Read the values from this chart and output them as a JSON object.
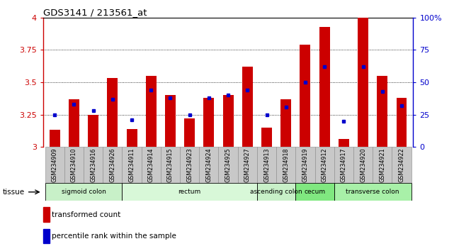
{
  "title": "GDS3141 / 213561_at",
  "samples": [
    "GSM234909",
    "GSM234910",
    "GSM234916",
    "GSM234926",
    "GSM234911",
    "GSM234914",
    "GSM234915",
    "GSM234923",
    "GSM234924",
    "GSM234925",
    "GSM234927",
    "GSM234913",
    "GSM234918",
    "GSM234919",
    "GSM234912",
    "GSM234917",
    "GSM234920",
    "GSM234921",
    "GSM234922"
  ],
  "red_values": [
    3.13,
    3.37,
    3.25,
    3.53,
    3.14,
    3.55,
    3.4,
    3.22,
    3.38,
    3.4,
    3.62,
    3.15,
    3.37,
    3.79,
    3.93,
    3.06,
    4.0,
    3.55,
    3.38
  ],
  "blue_values": [
    3.25,
    3.33,
    3.28,
    3.37,
    3.21,
    3.44,
    3.38,
    3.25,
    3.38,
    3.4,
    3.44,
    3.25,
    3.31,
    3.5,
    3.62,
    3.2,
    3.62,
    3.43,
    3.32
  ],
  "ymin": 3.0,
  "ymax": 4.0,
  "yticks": [
    3.0,
    3.25,
    3.5,
    3.75,
    4.0
  ],
  "ytick_labels": [
    "3",
    "3.25",
    "3.5",
    "3.75",
    "4"
  ],
  "right_yticks": [
    0,
    25,
    50,
    75,
    100
  ],
  "right_ytick_labels": [
    "0",
    "25",
    "50",
    "75",
    "100%"
  ],
  "gridlines": [
    3.25,
    3.5,
    3.75
  ],
  "tissue_groups": [
    {
      "label": "sigmoid colon",
      "start": 0,
      "end": 4,
      "color": "#c8f0c8"
    },
    {
      "label": "rectum",
      "start": 4,
      "end": 11,
      "color": "#d8f8d8"
    },
    {
      "label": "ascending colon",
      "start": 11,
      "end": 13,
      "color": "#c8f0c8"
    },
    {
      "label": "cecum",
      "start": 13,
      "end": 15,
      "color": "#80e880"
    },
    {
      "label": "transverse colon",
      "start": 15,
      "end": 19,
      "color": "#a8f0a8"
    }
  ],
  "bar_color": "#cc0000",
  "dot_color": "#0000cc",
  "bar_width": 0.55,
  "legend_items": [
    {
      "label": "transformed count",
      "color": "#cc0000"
    },
    {
      "label": "percentile rank within the sample",
      "color": "#0000cc"
    }
  ],
  "left_axis_color": "#cc0000",
  "right_axis_color": "#0000cc",
  "xlab_box_color": "#c8c8c8",
  "xlab_box_edge": "#888888"
}
